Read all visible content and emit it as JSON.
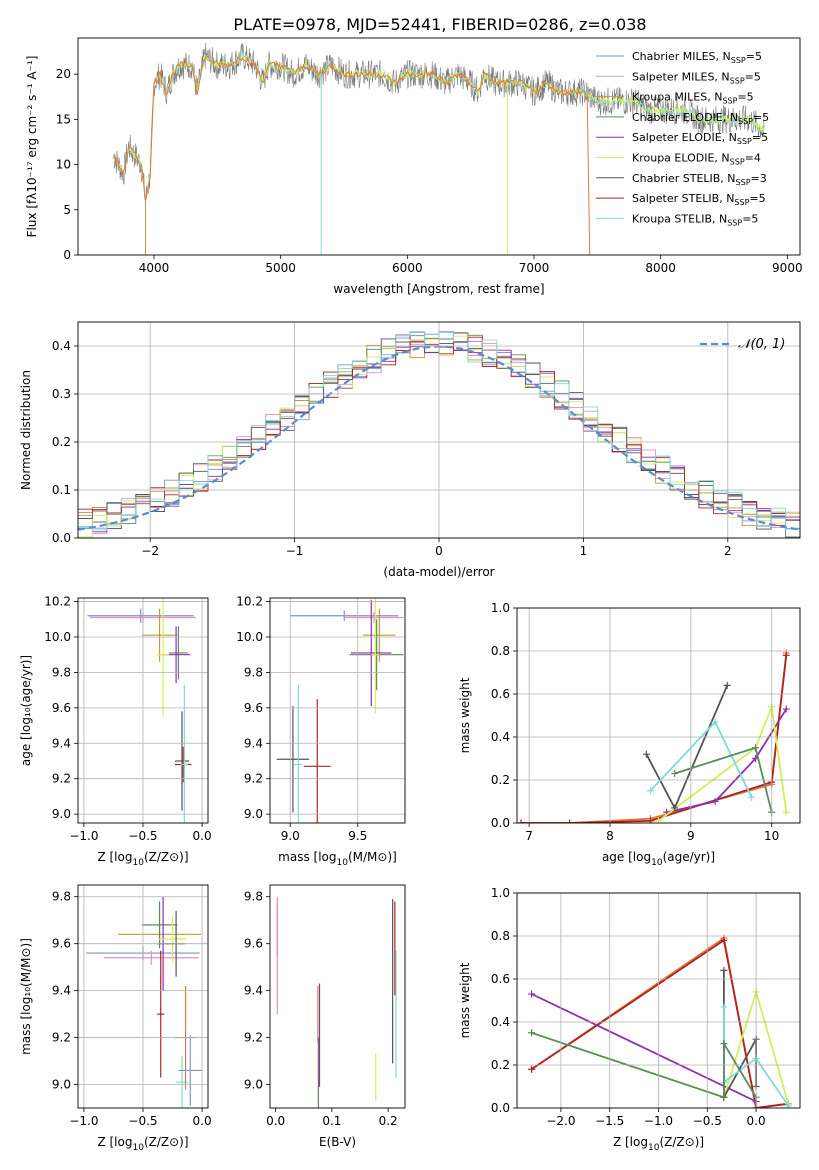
{
  "title": "PLATE=0978, MJD=52441, FIBERID=0286, z=0.038",
  "colors": [
    "#7b93d8",
    "#e58fbf",
    "#c09b3a",
    "#5b8a60",
    "#8e2fb0",
    "#d3ee5a",
    "#555555",
    "#b22222",
    "#7fdbd8",
    "#e07a3a"
  ],
  "chart_data": [
    {
      "id": "spectrum",
      "type": "line",
      "xlabel": "wavelength [Angstrom, rest frame]",
      "ylabel": "Flux [fλ10⁻¹⁷ erg cm⁻² s⁻¹ A⁻¹]",
      "xlim": [
        3400,
        9100
      ],
      "ylim": [
        0,
        24
      ],
      "xticks": [
        4000,
        5000,
        6000,
        7000,
        8000,
        9000
      ],
      "yticks": [
        0,
        5,
        10,
        15,
        20
      ],
      "grid": false,
      "legend_position": "top-right",
      "series": [
        {
          "name": "Chabrier MILES, N_SSP=5",
          "label_main": "Chabrier MILES, N",
          "label_sub": "SSP",
          "label_end": "=5"
        },
        {
          "name": "Salpeter MILES, N_SSP=5",
          "label_main": "Salpeter MILES, N",
          "label_sub": "SSP",
          "label_end": "=5"
        },
        {
          "name": "Kroupa MILES, N_SSP=5",
          "label_main": "Kroupa MILES, N",
          "label_sub": "SSP",
          "label_end": "=5"
        },
        {
          "name": "Chabrier ELODIE, N_SSP=5",
          "label_main": "Chabrier ELODIE, N",
          "label_sub": "SSP",
          "label_end": "=5"
        },
        {
          "name": "Salpeter ELODIE, N_SSP=5",
          "label_main": "Salpeter ELODIE, N",
          "label_sub": "SSP",
          "label_end": "=5"
        },
        {
          "name": "Kroupa ELODIE, N_SSP=4",
          "label_main": "Kroupa ELODIE, N",
          "label_sub": "SSP",
          "label_end": "=4"
        },
        {
          "name": "Chabrier STELIB, N_SSP=3",
          "label_main": "Chabrier STELIB, N",
          "label_sub": "SSP",
          "label_end": "=3"
        },
        {
          "name": "Salpeter STELIB, N_SSP=5",
          "label_main": "Salpeter STELIB, N",
          "label_sub": "SSP",
          "label_end": "=5"
        },
        {
          "name": "Kroupa STELIB, N_SSP=5",
          "label_main": "Kroupa STELIB, N",
          "label_sub": "SSP",
          "label_end": "=5"
        }
      ],
      "data_trace": {
        "x": [
          3680,
          3720,
          3760,
          3800,
          3850,
          3900,
          3933,
          3970,
          4000,
          4050,
          4101,
          4150,
          4200,
          4300,
          4340,
          4400,
          4500,
          4600,
          4700,
          4800,
          4861,
          4900,
          5000,
          5100,
          5200,
          5300,
          5400,
          5500,
          5600,
          5700,
          5800,
          5900,
          6000,
          6100,
          6200,
          6300,
          6400,
          6500,
          6563,
          6600,
          6700,
          6800,
          6900,
          7000,
          7100,
          7200,
          7300,
          7400,
          7500,
          7600,
          7700,
          7800,
          7900,
          8000,
          8100,
          8200,
          8300,
          8400,
          8500,
          8600,
          8700,
          8800
        ],
        "y": [
          11,
          10,
          9,
          12,
          11,
          10,
          6,
          9,
          19,
          20,
          18,
          20,
          21,
          21,
          18,
          22,
          21,
          21,
          22,
          21,
          19,
          21,
          21,
          20,
          21,
          20,
          21,
          20,
          20,
          20,
          20,
          19,
          20,
          20,
          20,
          19,
          20,
          19,
          18,
          20,
          19,
          19,
          19,
          18,
          19,
          18,
          18,
          18,
          17,
          17,
          17,
          17,
          16,
          16,
          16,
          16,
          15,
          15,
          15,
          15,
          15,
          14
        ]
      }
    },
    {
      "id": "residuals",
      "type": "histogram",
      "xlabel": "(data-model)/error",
      "ylabel": "Normed distribution",
      "xlim": [
        -2.5,
        2.5
      ],
      "ylim": [
        0,
        0.45
      ],
      "xticks": [
        -2,
        -1,
        0,
        1,
        2
      ],
      "yticks": [
        0.0,
        0.1,
        0.2,
        0.3,
        0.4
      ],
      "grid": true,
      "legend_position": "top-right",
      "reference_curve": {
        "name": "N(0,1)",
        "label": "𝒩(0, 1)",
        "mean": 0,
        "sigma": 1
      },
      "bin_width": 0.1
    },
    {
      "id": "age-vs-Z",
      "type": "errorbar",
      "xlabel_main": "Z [log",
      "xlabel_sub": "10",
      "xlabel_end": "(Z/Z⊙)]",
      "ylabel": "age  [log₁₀(age/yr)]",
      "xlim": [
        -1.05,
        0.05
      ],
      "ylim": [
        8.95,
        10.22
      ],
      "xticks": [
        -1.0,
        -0.5,
        0.0
      ],
      "yticks": [
        9.0,
        9.2,
        9.4,
        9.6,
        9.8,
        10.0,
        10.2
      ],
      "grid": true,
      "points": [
        {
          "x": -0.52,
          "xerr": 0.45,
          "y": 10.12,
          "yerr": 0.04
        },
        {
          "x": -0.5,
          "xerr": 0.45,
          "y": 10.11,
          "yerr": 0.03
        },
        {
          "x": -0.36,
          "xerr": 0.15,
          "y": 10.01,
          "yerr": 0.15
        },
        {
          "x": -0.2,
          "xerr": 0.08,
          "y": 9.91,
          "yerr": 0.15
        },
        {
          "x": -0.22,
          "xerr": 0.12,
          "y": 9.9,
          "yerr": 0.16
        },
        {
          "x": -0.33,
          "xerr": 0.05,
          "y": 9.9,
          "yerr": 0.35
        },
        {
          "x": -0.17,
          "xerr": 0.06,
          "y": 9.3,
          "yerr": 0.28
        },
        {
          "x": -0.16,
          "xerr": 0.07,
          "y": 9.28,
          "yerr": 0.1
        },
        {
          "x": -0.15,
          "xerr": 0.03,
          "y": 9.28,
          "yerr": 0.45
        }
      ]
    },
    {
      "id": "age-vs-mass",
      "type": "errorbar",
      "xlabel_main": "mass [log",
      "xlabel_sub": "10",
      "xlabel_end": "(M/M⊙)]",
      "ylabel": "",
      "xlim": [
        8.85,
        9.85
      ],
      "ylim": [
        8.95,
        10.22
      ],
      "xticks": [
        9.0,
        9.5
      ],
      "yticks": [
        9.0,
        9.2,
        9.4,
        9.6,
        9.8,
        10.0,
        10.2
      ],
      "grid": true,
      "points": [
        {
          "x": 9.4,
          "xerr": 0.4,
          "y": 10.12,
          "yerr": 0.03
        },
        {
          "x": 9.62,
          "xerr": 0.22,
          "y": 10.11,
          "yerr": 0.03
        },
        {
          "x": 9.66,
          "xerr": 0.12,
          "y": 10.01,
          "yerr": 0.15
        },
        {
          "x": 9.64,
          "xerr": 0.2,
          "y": 9.9,
          "yerr": 0.2
        },
        {
          "x": 9.6,
          "xerr": 0.15,
          "y": 9.91,
          "yerr": 0.3
        },
        {
          "x": 9.63,
          "xerr": 0.03,
          "y": 9.9,
          "yerr": 0.33
        },
        {
          "x": 9.02,
          "xerr": 0.12,
          "y": 9.31,
          "yerr": 0.3
        },
        {
          "x": 9.2,
          "xerr": 0.1,
          "y": 9.27,
          "yerr": 0.38
        },
        {
          "x": 9.06,
          "xerr": 0.03,
          "y": 9.28,
          "yerr": 0.45
        }
      ]
    },
    {
      "id": "massweight-vs-age",
      "type": "line",
      "xlabel_main": "age  [log",
      "xlabel_sub": "10",
      "xlabel_end": "(age/yr)]",
      "ylabel": "mass weight",
      "xlim": [
        6.85,
        10.35
      ],
      "ylim": [
        0,
        1.0
      ],
      "xticks": [
        7,
        8,
        9,
        10
      ],
      "yticks": [
        0.0,
        0.2,
        0.4,
        0.6,
        0.8,
        1.0
      ],
      "grid": true,
      "series": [
        {
          "x": [
            6.9,
            7.5,
            8.5,
            10.0,
            10.18
          ],
          "y": [
            0.0,
            0.0,
            0.02,
            0.18,
            0.79
          ]
        },
        {
          "x": [
            6.9,
            7.5,
            8.5,
            10.0,
            10.18
          ],
          "y": [
            0.0,
            0.0,
            0.01,
            0.19,
            0.78
          ]
        },
        {
          "x": [
            8.7,
            9.3,
            9.8,
            10.18
          ],
          "y": [
            0.05,
            0.1,
            0.3,
            0.53
          ]
        },
        {
          "x": [
            8.6,
            9.8,
            10.0,
            10.18
          ],
          "y": [
            0.01,
            0.35,
            0.54,
            0.05
          ]
        },
        {
          "x": [
            8.45,
            8.8,
            9.45
          ],
          "y": [
            0.32,
            0.07,
            0.64
          ]
        },
        {
          "x": [
            8.5,
            9.3,
            9.75
          ],
          "y": [
            0.15,
            0.47,
            0.12
          ]
        },
        {
          "x": [
            8.8,
            9.8,
            10.0
          ],
          "y": [
            0.23,
            0.35,
            0.05
          ]
        }
      ]
    },
    {
      "id": "mass-vs-Z",
      "type": "errorbar",
      "xlabel_main": "Z [log",
      "xlabel_sub": "10",
      "xlabel_end": "(Z/Z⊙)]",
      "ylabel": "mass [log₁₀(M/M⊙)]",
      "xlim": [
        -1.05,
        0.05
      ],
      "ylim": [
        8.9,
        9.85
      ],
      "xticks": [
        -1.0,
        -0.5,
        0.0
      ],
      "yticks": [
        9.0,
        9.2,
        9.4,
        9.6,
        9.8
      ],
      "grid": true,
      "points": [
        {
          "x": -0.5,
          "xerr": 0.48,
          "y": 9.56,
          "yerr": 0.03
        },
        {
          "x": -0.43,
          "xerr": 0.4,
          "y": 9.54,
          "yerr": 0.03
        },
        {
          "x": -0.36,
          "xerr": 0.35,
          "y": 9.64,
          "yerr": 0.05
        },
        {
          "x": -0.36,
          "xerr": 0.15,
          "y": 9.68,
          "yerr": 0.1
        },
        {
          "x": -0.33,
          "xerr": 0.05,
          "y": 9.6,
          "yerr": 0.2
        },
        {
          "x": -0.25,
          "xerr": 0.12,
          "y": 9.62,
          "yerr": 0.1
        },
        {
          "x": -0.22,
          "xerr": 0.08,
          "y": 9.6,
          "yerr": 0.14
        },
        {
          "x": -0.35,
          "xerr": 0.03,
          "y": 9.3,
          "yerr": 0.27
        },
        {
          "x": -0.17,
          "xerr": 0.05,
          "y": 9.01,
          "yerr": 0.11
        },
        {
          "x": -0.14,
          "xerr": 0.09,
          "y": 9.2,
          "yerr": 0.22
        },
        {
          "x": -0.1,
          "xerr": 0.1,
          "y": 9.06,
          "yerr": 0.15
        }
      ]
    },
    {
      "id": "mass-vs-EBV",
      "type": "errorbar",
      "xlabel": "E(B-V)",
      "ylabel": "",
      "xlim": [
        -0.01,
        0.23
      ],
      "ylim": [
        8.9,
        9.85
      ],
      "xticks": [
        0.0,
        0.1,
        0.2
      ],
      "yticks": [
        9.0,
        9.2,
        9.4,
        9.6,
        9.8
      ],
      "grid": false,
      "points": [
        {
          "x": 0.003,
          "y": 9.66,
          "yerr": 0.12
        },
        {
          "x": 0.003,
          "y": 9.55,
          "yerr": 0.25
        },
        {
          "x": 0.075,
          "y": 9.3,
          "yerr": 0.12
        },
        {
          "x": 0.076,
          "y": 9.0,
          "yerr": 0.2
        },
        {
          "x": 0.078,
          "y": 9.21,
          "yerr": 0.22
        },
        {
          "x": 0.178,
          "y": 9.03,
          "yerr": 0.1
        },
        {
          "x": 0.208,
          "y": 9.44,
          "yerr": 0.35
        },
        {
          "x": 0.212,
          "y": 9.58,
          "yerr": 0.2
        },
        {
          "x": 0.214,
          "y": 9.3,
          "yerr": 0.27
        }
      ]
    },
    {
      "id": "massweight-vs-Z",
      "type": "line",
      "xlabel_main": "Z [log",
      "xlabel_sub": "10",
      "xlabel_end": "(Z/Z⊙)]",
      "ylabel": "mass weight",
      "xlim": [
        -2.45,
        0.45
      ],
      "ylim": [
        0,
        1.0
      ],
      "xticks": [
        -2.0,
        -1.5,
        -1.0,
        -0.5,
        0.0
      ],
      "yticks": [
        0.0,
        0.2,
        0.4,
        0.6,
        0.8,
        1.0
      ],
      "grid": true,
      "series": [
        {
          "x": [
            -2.3,
            -0.33,
            0.0,
            0.33
          ],
          "y": [
            0.18,
            0.79,
            0.0,
            0.02
          ]
        },
        {
          "x": [
            -2.3,
            -0.33,
            0.0,
            0.33
          ],
          "y": [
            0.18,
            0.78,
            0.0,
            0.02
          ]
        },
        {
          "x": [
            -2.3,
            0.0
          ],
          "y": [
            0.53,
            0.03
          ]
        },
        {
          "x": [
            -2.3,
            -0.33,
            0.0,
            0.33
          ],
          "y": [
            0.35,
            0.05,
            0.54,
            0.02
          ]
        },
        {
          "x": [
            -0.33,
            -0.33,
            0.0,
            0.0
          ],
          "y": [
            0.64,
            0.05,
            0.32,
            0.1
          ]
        },
        {
          "x": [
            -0.33,
            -0.33,
            0.0,
            0.33
          ],
          "y": [
            0.47,
            0.12,
            0.23,
            0.01
          ]
        },
        {
          "x": [
            -2.3,
            -0.33,
            -0.33,
            0.0
          ],
          "y": [
            0.35,
            0.05,
            0.3,
            0.05
          ]
        }
      ]
    }
  ]
}
